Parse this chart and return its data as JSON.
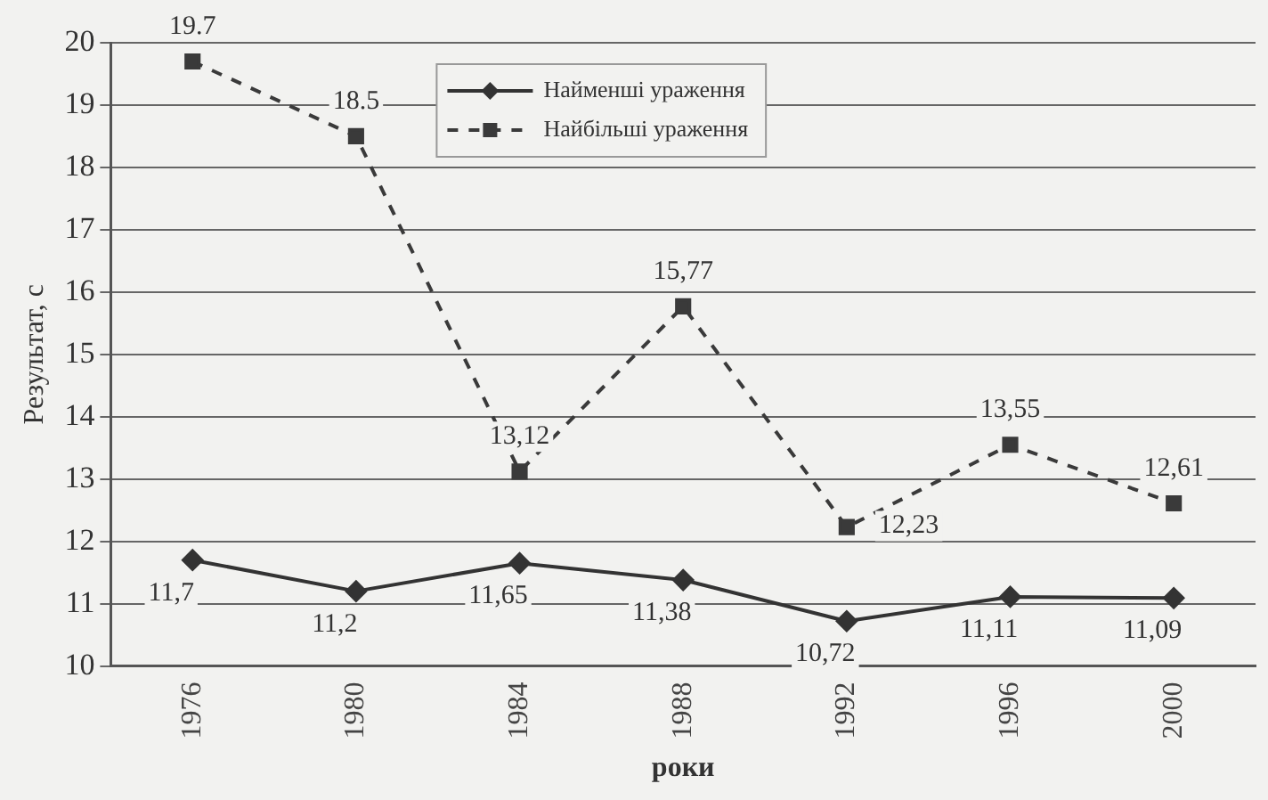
{
  "chart_data": {
    "type": "line",
    "xlabel": "роки",
    "ylabel": "Результат, с",
    "categories": [
      "1976",
      "1980",
      "1984",
      "1988",
      "1992",
      "1996",
      "2000"
    ],
    "series": [
      {
        "name": "Найменші ураження",
        "color": "#333333",
        "marker": "diamond",
        "line_style": "solid",
        "values": [
          11.7,
          11.2,
          11.65,
          11.38,
          10.72,
          11.11,
          11.09
        ],
        "value_labels": [
          "11,7",
          "11,2",
          "11,65",
          "11,38",
          "10,72",
          "11,11",
          "11,09"
        ]
      },
      {
        "name": "Найбільші ураження",
        "color": "#3a3a3a",
        "marker": "square",
        "line_style": "dashed",
        "values": [
          19.7,
          18.5,
          13.12,
          15.77,
          12.23,
          13.55,
          12.61
        ],
        "value_labels": [
          "19.7",
          "18.5",
          "13,12",
          "15,77",
          "12,23",
          "13,55",
          "12,61"
        ]
      }
    ],
    "ylim": [
      10,
      20
    ],
    "yticks": [
      10,
      11,
      12,
      13,
      14,
      15,
      16,
      17,
      18,
      19,
      20
    ],
    "grid": "y",
    "legend": "top"
  }
}
